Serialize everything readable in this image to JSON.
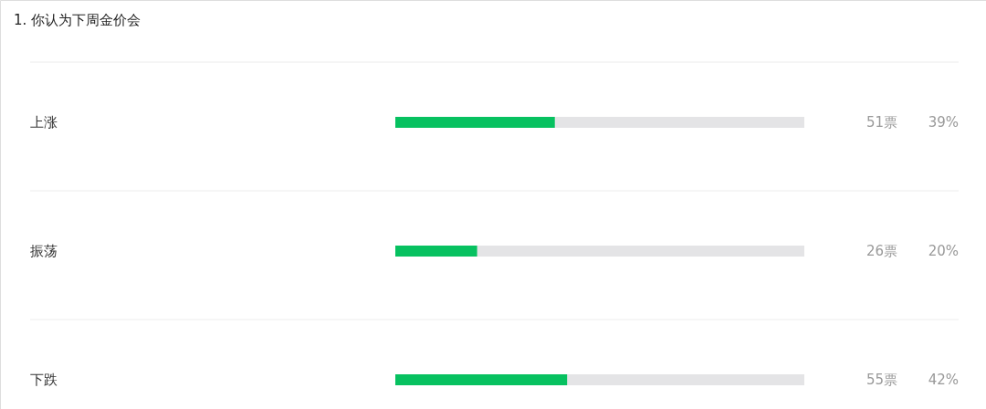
{
  "chart_data": {
    "type": "bar",
    "orientation": "horizontal",
    "title": "1. 你认为下周金价会",
    "categories": [
      "上涨",
      "振荡",
      "下跌"
    ],
    "values": [
      39,
      20,
      42
    ],
    "color": "#07c160",
    "value_labels": [
      "39%",
      "20%",
      "42%"
    ],
    "annotations": [
      "51票",
      "26票",
      "55票"
    ],
    "xlim": [
      0,
      100
    ],
    "tick_labels": false
  }
}
